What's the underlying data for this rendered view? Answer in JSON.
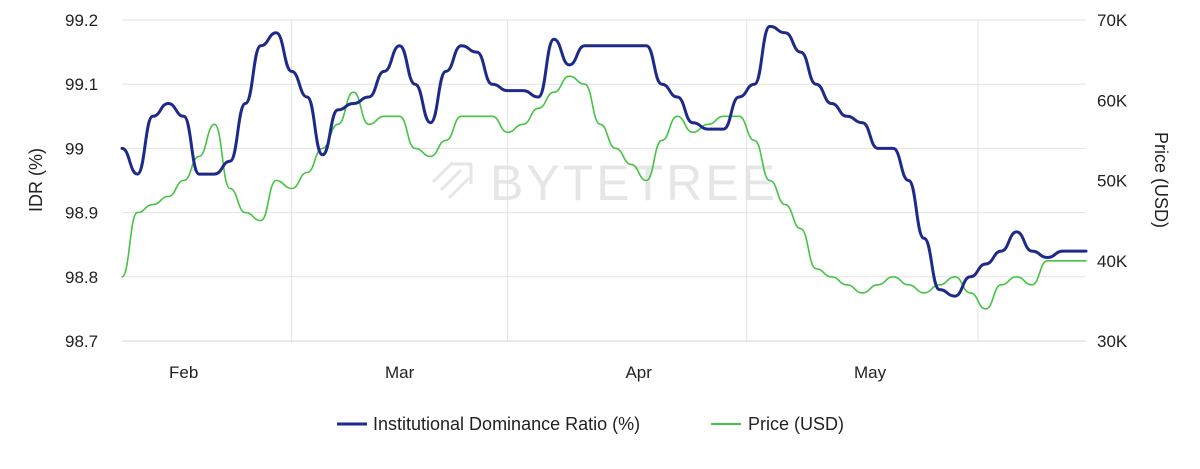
{
  "chart_data": {
    "type": "line",
    "watermark": "BYTETREE",
    "x_axis": {
      "ticks": [
        "Feb",
        "Mar",
        "Apr",
        "May"
      ],
      "range": [
        "Jan 24",
        "May 29"
      ]
    },
    "y_left": {
      "title": "IDR (%)",
      "ticks": [
        "99.2",
        "99.1",
        "99",
        "98.9",
        "98.8",
        "98.7"
      ],
      "ylim": [
        98.7,
        99.2
      ]
    },
    "y_right": {
      "title": "Price (USD)",
      "ticks": [
        "70K",
        "60K",
        "50K",
        "40K",
        "30K"
      ],
      "ylim": [
        30000,
        70000
      ]
    },
    "grid": true,
    "legend_position": "bottom-center",
    "series": [
      {
        "name": "Institutional Dominance Ratio (%)",
        "axis": "left",
        "color": "#1e2a8a",
        "x": [
          "Jan 24",
          "Jan 26",
          "Jan 28",
          "Jan 30",
          "Feb 1",
          "Feb 3",
          "Feb 5",
          "Feb 7",
          "Feb 9",
          "Feb 11",
          "Feb 13",
          "Feb 15",
          "Feb 17",
          "Feb 19",
          "Feb 21",
          "Feb 23",
          "Feb 25",
          "Feb 27",
          "Mar 1",
          "Mar 3",
          "Mar 5",
          "Mar 7",
          "Mar 9",
          "Mar 11",
          "Mar 13",
          "Mar 15",
          "Mar 17",
          "Mar 19",
          "Mar 21",
          "Mar 23",
          "Mar 25",
          "Mar 27",
          "Mar 29",
          "Mar 31",
          "Apr 2",
          "Apr 4",
          "Apr 6",
          "Apr 8",
          "Apr 10",
          "Apr 12",
          "Apr 14",
          "Apr 16",
          "Apr 18",
          "Apr 20",
          "Apr 22",
          "Apr 24",
          "Apr 26",
          "Apr 28",
          "Apr 30",
          "May 2",
          "May 4",
          "May 6",
          "May 8",
          "May 10",
          "May 12",
          "May 14",
          "May 16",
          "May 18",
          "May 20",
          "May 22",
          "May 24",
          "May 26",
          "May 28",
          "May 29"
        ],
        "values": [
          99.0,
          98.96,
          99.05,
          99.07,
          99.05,
          98.96,
          98.96,
          98.98,
          99.07,
          99.16,
          99.18,
          99.12,
          99.08,
          98.99,
          99.06,
          99.07,
          99.08,
          99.12,
          99.16,
          99.1,
          99.04,
          99.12,
          99.16,
          99.15,
          99.1,
          99.09,
          99.09,
          99.08,
          99.17,
          99.13,
          99.16,
          99.16,
          99.16,
          99.16,
          99.16,
          99.1,
          99.08,
          99.04,
          99.03,
          99.03,
          99.08,
          99.1,
          99.19,
          99.18,
          99.15,
          99.1,
          99.07,
          99.05,
          99.04,
          99.0,
          99.0,
          98.95,
          98.86,
          98.78,
          98.77,
          98.8,
          98.82,
          98.84,
          98.87,
          98.84,
          98.83,
          98.84,
          98.84,
          98.84
        ]
      },
      {
        "name": "Price (USD)",
        "axis": "right",
        "color": "#43c443",
        "x": [
          "Jan 24",
          "Jan 26",
          "Jan 28",
          "Jan 30",
          "Feb 1",
          "Feb 3",
          "Feb 5",
          "Feb 7",
          "Feb 9",
          "Feb 11",
          "Feb 13",
          "Feb 15",
          "Feb 17",
          "Feb 19",
          "Feb 21",
          "Feb 23",
          "Feb 25",
          "Feb 27",
          "Mar 1",
          "Mar 3",
          "Mar 5",
          "Mar 7",
          "Mar 9",
          "Mar 11",
          "Mar 13",
          "Mar 15",
          "Mar 17",
          "Mar 19",
          "Mar 21",
          "Mar 23",
          "Mar 25",
          "Mar 27",
          "Mar 29",
          "Mar 31",
          "Apr 2",
          "Apr 4",
          "Apr 6",
          "Apr 8",
          "Apr 10",
          "Apr 12",
          "Apr 14",
          "Apr 16",
          "Apr 18",
          "Apr 20",
          "Apr 22",
          "Apr 24",
          "Apr 26",
          "Apr 28",
          "Apr 30",
          "May 2",
          "May 4",
          "May 6",
          "May 8",
          "May 10",
          "May 12",
          "May 14",
          "May 16",
          "May 18",
          "May 20",
          "May 22",
          "May 24",
          "May 26",
          "May 28",
          "May 29"
        ],
        "values": [
          38000,
          46000,
          47000,
          48000,
          50000,
          53000,
          57000,
          49000,
          46000,
          45000,
          50000,
          49000,
          51000,
          54000,
          57000,
          61000,
          57000,
          58000,
          58000,
          54000,
          53000,
          55000,
          58000,
          58000,
          58000,
          56000,
          57000,
          59000,
          61000,
          63000,
          62000,
          57000,
          54000,
          52000,
          50000,
          55000,
          58000,
          56000,
          57000,
          58000,
          58000,
          55000,
          50000,
          47000,
          44000,
          39000,
          38000,
          37000,
          36000,
          37000,
          38000,
          37000,
          36000,
          37000,
          38000,
          36000,
          34000,
          37000,
          38000,
          37000,
          40000,
          40000,
          40000,
          40000
        ]
      }
    ]
  }
}
